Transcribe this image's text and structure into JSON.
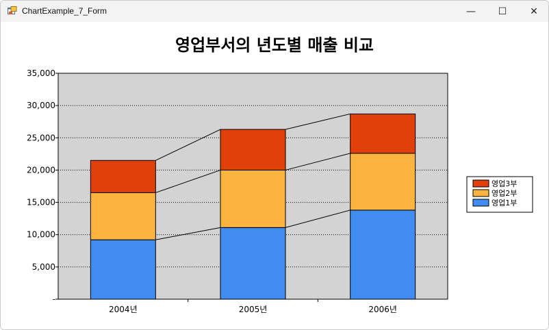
{
  "window": {
    "title": "ChartExample_7_Form",
    "controls": {
      "minimize": "—",
      "maximize": "☐",
      "close": "✕"
    }
  },
  "chart_data": {
    "type": "bar",
    "stacked": true,
    "title": "영업부서의 년도별 매출 비교",
    "xlabel": "",
    "ylabel": "",
    "categories": [
      "2004년",
      "2005년",
      "2006년"
    ],
    "series": [
      {
        "name": "영업1부",
        "color": "#418CF0",
        "values": [
          9200,
          11100,
          13800
        ]
      },
      {
        "name": "영업2부",
        "color": "#FCB441",
        "values": [
          7300,
          8900,
          8800
        ]
      },
      {
        "name": "영업3부",
        "color": "#E0400A",
        "values": [
          5000,
          6300,
          6100
        ]
      }
    ],
    "ylim": [
      0,
      35000
    ],
    "yticks": [
      {
        "value": 0,
        "label": "-"
      },
      {
        "value": 5000,
        "label": "5,000"
      },
      {
        "value": 10000,
        "label": "10,000"
      },
      {
        "value": 15000,
        "label": "15,000"
      },
      {
        "value": 20000,
        "label": "20,000"
      },
      {
        "value": 25000,
        "label": "25,000"
      },
      {
        "value": 30000,
        "label": "30,000"
      },
      {
        "value": 35000,
        "label": "35,000"
      }
    ],
    "legend_position": "right",
    "grid": true,
    "plot_background": "#D3D3D3"
  }
}
